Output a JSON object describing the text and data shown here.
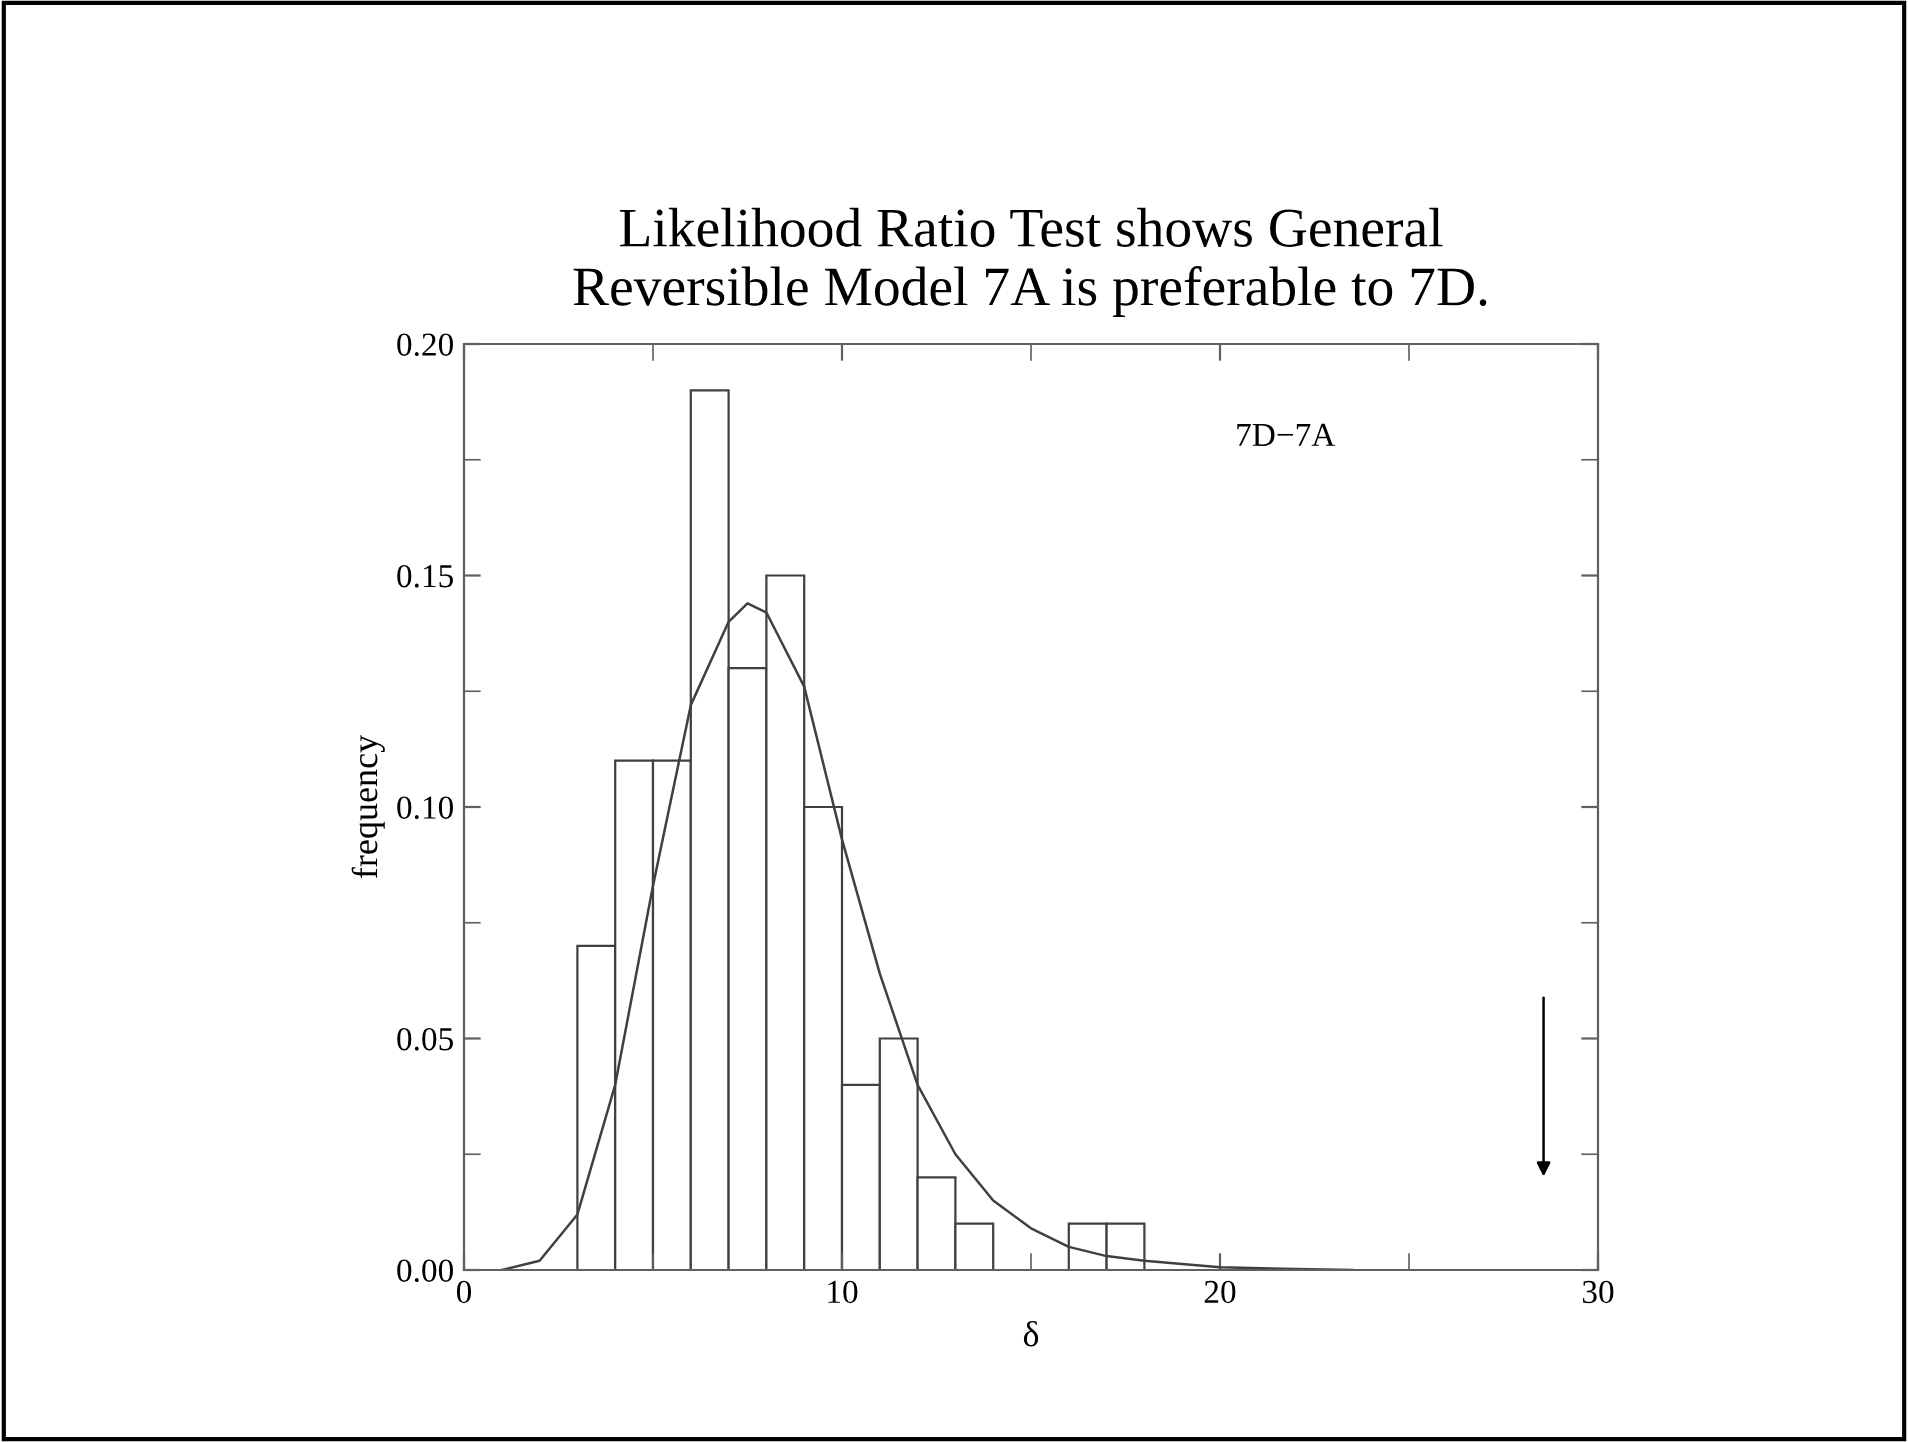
{
  "chart_data": {
    "type": "histogram",
    "title": "Likelihood Ratio Test shows General\nReversible Model 7A is preferable to 7D.",
    "xlabel": "δ",
    "ylabel": "frequency",
    "bins": [
      3,
      4,
      5,
      6,
      7,
      8,
      9,
      10,
      11,
      12,
      13,
      14,
      15,
      16,
      17,
      18
    ],
    "values": [
      0.07,
      0.11,
      0.11,
      0.19,
      0.13,
      0.15,
      0.1,
      0.04,
      0.05,
      0.02,
      0.01,
      0,
      0,
      0.01,
      0.01
    ],
    "color": "#ffffff",
    "series": [
      {
        "type": "line",
        "color": "#404040",
        "x": [
          1,
          2,
          3,
          4,
          5,
          6,
          7,
          7.5,
          8,
          9,
          10,
          11,
          12,
          13,
          14,
          15,
          16,
          17,
          18,
          20,
          22,
          23.5
        ],
        "values": [
          0,
          0.002,
          0.012,
          0.04,
          0.083,
          0.122,
          0.14,
          0.144,
          0.142,
          0.126,
          0.093,
          0.064,
          0.04,
          0.025,
          0.015,
          0.009,
          0.005,
          0.003,
          0.002,
          0.0006,
          0.0002,
          0
        ]
      }
    ],
    "annotations": [
      "7D−7A"
    ],
    "xlim": [
      0,
      30
    ],
    "ylim": [
      0,
      0.2
    ],
    "xticks": [
      0,
      10,
      20,
      30
    ],
    "yticks": [
      {
        "value": 0,
        "label": "0.00"
      },
      {
        "value": 0.05,
        "label": "0.05"
      },
      {
        "value": 0.1,
        "label": "0.10"
      },
      {
        "value": 0.15,
        "label": "0.15"
      },
      {
        "value": 0.2,
        "label": "0.20"
      }
    ],
    "grid": false,
    "legend": false
  }
}
